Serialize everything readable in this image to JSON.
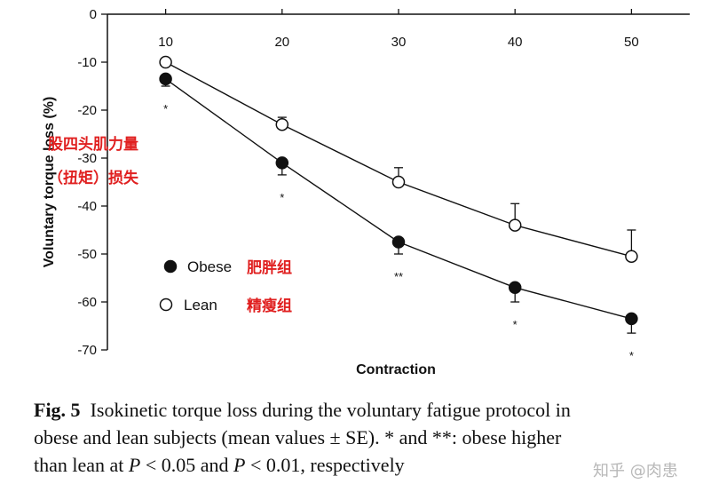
{
  "chart_data": {
    "type": "line",
    "xlabel": "Contraction",
    "ylabel": "Voluntary torque loss (%)",
    "x": [
      10,
      20,
      30,
      40,
      50
    ],
    "x_ticks": [
      "10",
      "20",
      "30",
      "40",
      "50"
    ],
    "y_ticks": [
      "0",
      "-10",
      "-20",
      "-30",
      "-40",
      "-50",
      "-60",
      "-70"
    ],
    "ylim": [
      -70,
      0
    ],
    "xlim": [
      10,
      50
    ],
    "legend_position": "lower-left",
    "grid": false,
    "x_axis_location": "top",
    "series": [
      {
        "name": "Obese",
        "name_cn": "肥胖组",
        "marker": "filled-circle",
        "values": [
          -13.5,
          -31,
          -47.5,
          -57,
          -63.5
        ],
        "se": [
          1.5,
          2.5,
          2.5,
          3,
          3
        ],
        "error_direction": "down"
      },
      {
        "name": "Lean",
        "name_cn": "精瘦组",
        "marker": "open-circle",
        "values": [
          -10,
          -23,
          -35,
          -44,
          -50.5
        ],
        "se": [
          0.5,
          1.5,
          3,
          4.5,
          5.5
        ],
        "error_direction": "up"
      }
    ],
    "significance": [
      "*",
      "*",
      "**",
      "*",
      "*"
    ],
    "overlay_title_line1": "股四头肌力量",
    "overlay_title_line2": "（扭矩）损失"
  },
  "caption": {
    "fig_label": "Fig. 5",
    "line1": "Isokinetic torque loss during the voluntary fatigue protocol in",
    "line2": "obese and lean subjects (mean values ± SE). * and **: obese higher",
    "line3_a": "than lean at ",
    "line3_p1": "P",
    "line3_b": " < 0.05 and ",
    "line3_p2": "P",
    "line3_c": " < 0.01, respectively"
  },
  "watermark": "知乎 @肉患",
  "colors": {
    "annotation": "#e02020",
    "line": "#111111",
    "watermark": "#b8b8b8"
  }
}
